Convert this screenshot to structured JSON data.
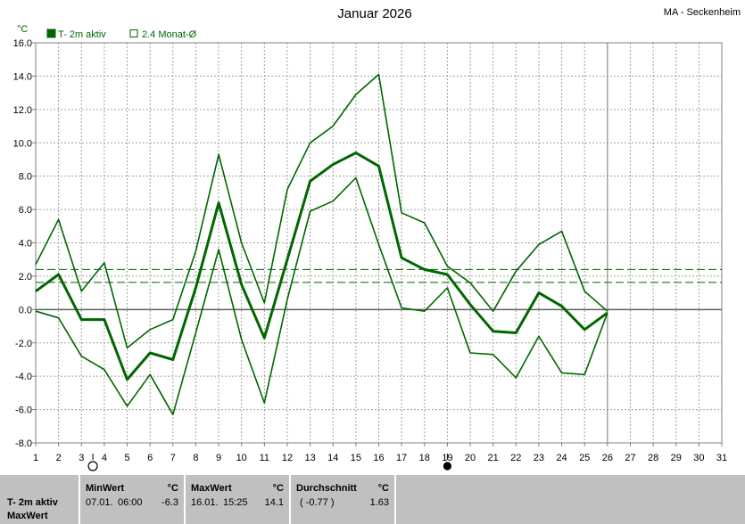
{
  "station": "MA - Seckenheim",
  "chart_data": {
    "type": "line",
    "title": "Januar 2026",
    "ylabel": "°C",
    "ylim": [
      -8,
      16
    ],
    "yticks": [
      "16.0",
      "14.0",
      "12.0",
      "10.0",
      "8.0",
      "6.0",
      "4.0",
      "2.0",
      "0.0",
      "-2.0",
      "-4.0",
      "-6.0",
      "-8.0"
    ],
    "x": [
      1,
      2,
      3,
      4,
      5,
      6,
      7,
      8,
      9,
      10,
      11,
      12,
      13,
      14,
      15,
      16,
      17,
      18,
      19,
      20,
      21,
      22,
      23,
      24,
      25,
      26
    ],
    "xticks": [
      "1",
      "2",
      "3",
      "4",
      "5",
      "6",
      "7",
      "8",
      "9",
      "10",
      "11",
      "12",
      "13",
      "14",
      "15",
      "16",
      "17",
      "18",
      "19",
      "20",
      "21",
      "22",
      "23",
      "24",
      "25",
      "26",
      "27",
      "28",
      "29",
      "30",
      "31"
    ],
    "xlim": [
      1,
      31
    ],
    "grid": true,
    "legend": [
      {
        "label": "T- 2m aktiv",
        "color": "#006600",
        "filled": true
      },
      {
        "label": "2.4 Monat-Ø",
        "color": "#006600",
        "filled": false
      }
    ],
    "series": [
      {
        "name": "T- 2m aktiv",
        "role": "mean",
        "values": [
          1.1,
          2.1,
          -0.6,
          -0.6,
          -4.2,
          -2.6,
          -3.0,
          1.3,
          6.4,
          1.5,
          -1.7,
          3.0,
          7.7,
          8.7,
          9.4,
          8.6,
          3.1,
          2.4,
          2.1,
          0.3,
          -1.3,
          -1.4,
          1.0,
          0.2,
          -1.2,
          -0.2
        ]
      },
      {
        "name": "",
        "role": "max",
        "values": [
          2.7,
          5.4,
          1.1,
          2.8,
          -2.3,
          -1.2,
          -0.6,
          3.5,
          9.3,
          4.0,
          0.4,
          7.2,
          10.0,
          11.0,
          12.9,
          14.1,
          5.8,
          5.2,
          2.6,
          1.6,
          -0.1,
          2.3,
          3.9,
          4.7,
          1.1,
          -0.1
        ]
      },
      {
        "name": "",
        "role": "min",
        "values": [
          -0.1,
          -0.5,
          -2.8,
          -3.6,
          -5.8,
          -3.9,
          -6.3,
          -1.4,
          3.6,
          -1.8,
          -5.6,
          0.6,
          5.9,
          6.5,
          7.9,
          3.9,
          0.1,
          -0.1,
          1.3,
          -2.6,
          -2.7,
          -4.1,
          -1.6,
          -3.8,
          -3.9,
          -0.2
        ]
      }
    ],
    "reference_lines": [
      {
        "y": 2.4,
        "style": "dashed"
      },
      {
        "y": 1.63,
        "style": "dashed"
      }
    ],
    "current_day": 26,
    "moon_phases": [
      {
        "day": 3.5,
        "type": "full-moon"
      },
      {
        "day": 19,
        "type": "new-moon"
      }
    ],
    "colors": {
      "line": "#006600",
      "grid": "#a0a0a0",
      "axis": "#808080"
    }
  },
  "footer": {
    "row_label": "T- 2m aktiv",
    "row_sub": "MaxWert",
    "min_header": "MinWert",
    "min_unit": "°C",
    "min_date": "07.01.",
    "min_time": "06:00",
    "min_value": "-6.3",
    "max_header": "MaxWert",
    "max_unit": "°C",
    "max_date": "16.01.",
    "max_time": "15:25",
    "max_value": "14.1",
    "avg_header": "Durchschnitt",
    "avg_unit": "°C",
    "avg_diff": "( -0.77 )",
    "avg_value": "1.63"
  }
}
